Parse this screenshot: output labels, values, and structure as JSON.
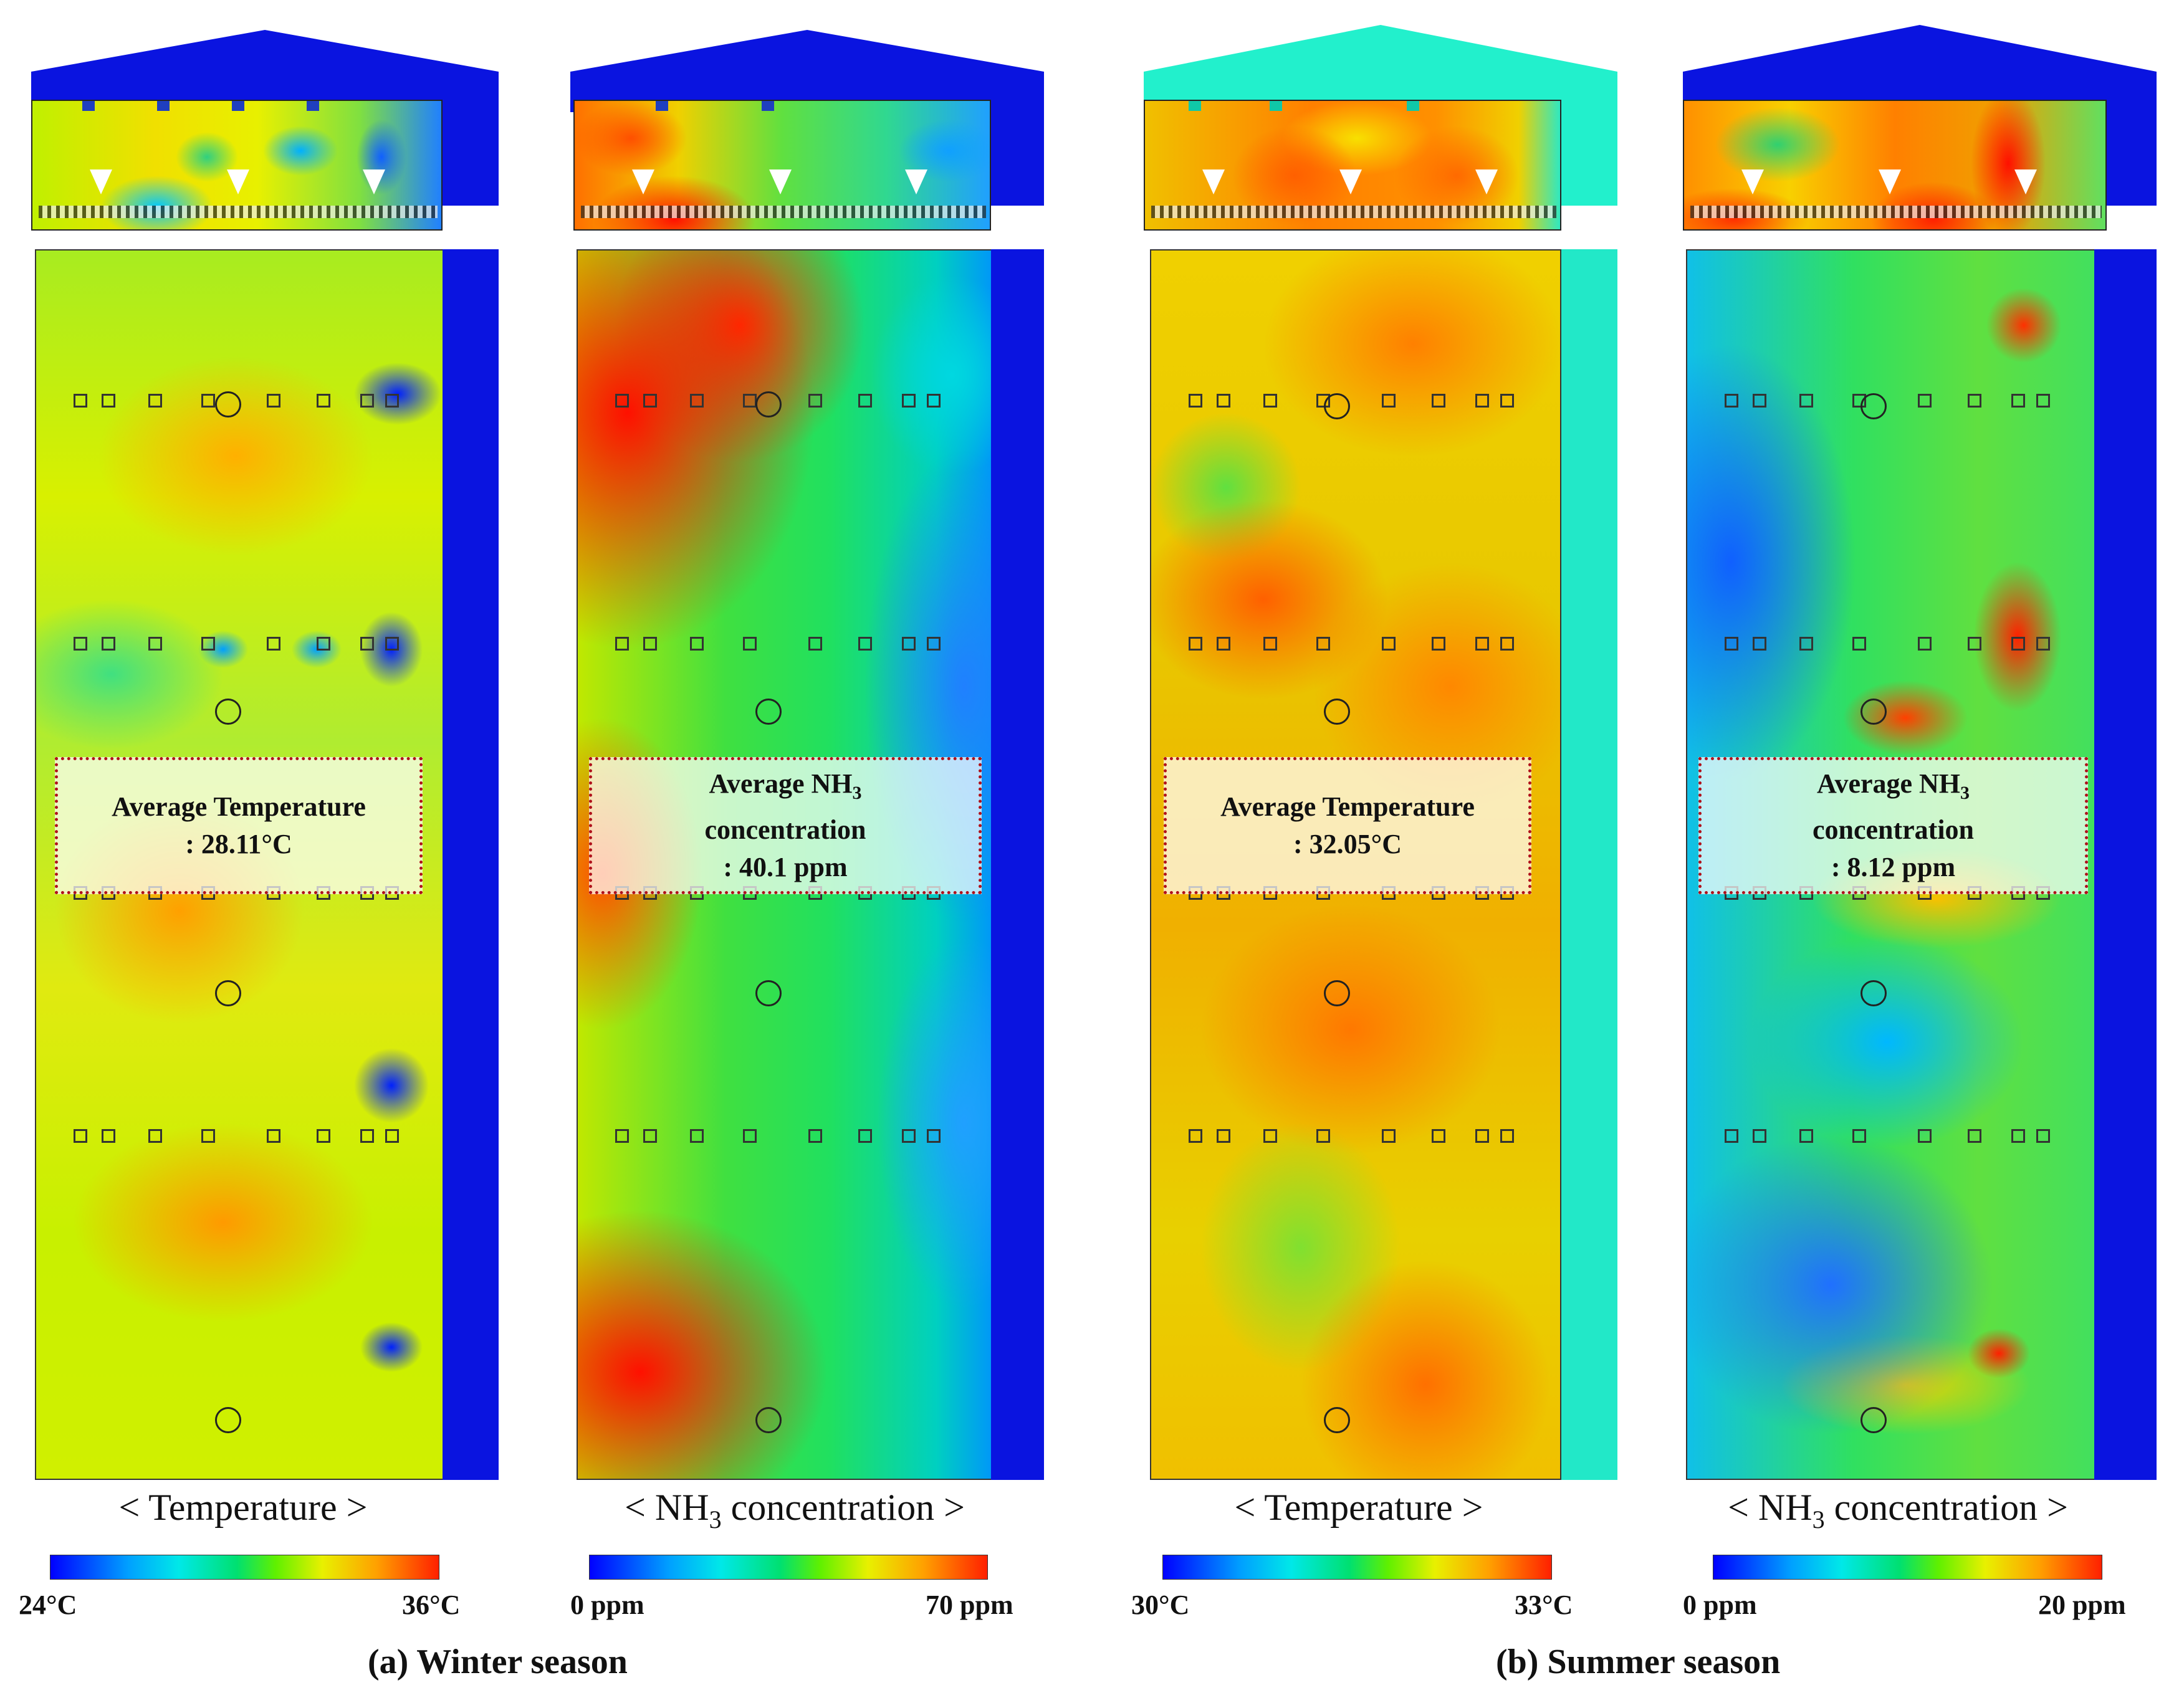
{
  "panels": [
    {
      "id": "winter-temperature",
      "avg_line1": "Average Temperature",
      "avg_line2": ": 28.11°C",
      "caption": "< Temperature >",
      "scale_min": "24°C",
      "scale_max": "36°C",
      "wall_color": "#0a14e0",
      "roof_color": "#0a14e0"
    },
    {
      "id": "winter-nh3",
      "avg_line1": "Average NH",
      "avg_line1_sub": "3",
      "avg_line2": "concentration",
      "avg_line3": ": 40.1 ppm",
      "caption_pre": "< NH",
      "caption_sub": "3",
      "caption_post": " concentration >",
      "scale_min": "0 ppm",
      "scale_max": "70 ppm",
      "wall_color": "#0a14e0",
      "roof_color": "#0a14e0"
    },
    {
      "id": "summer-temperature",
      "avg_line1": "Average Temperature",
      "avg_line2": ": 32.05°C",
      "caption": "< Temperature >",
      "scale_min": "30°C",
      "scale_max": "33°C",
      "wall_color": "#22e8c8",
      "roof_color": "#22f0cc"
    },
    {
      "id": "summer-nh3",
      "avg_line1": "Average NH",
      "avg_line1_sub": "3",
      "avg_line2": "concentration",
      "avg_line3": ": 8.12 ppm",
      "caption_pre": "< NH",
      "caption_sub": "3",
      "caption_post": " concentration >",
      "scale_min": "0 ppm",
      "scale_max": "20 ppm",
      "wall_color": "#0a14e0",
      "roof_color": "#0a14e0"
    }
  ],
  "season_labels": {
    "winter": "(a) Winter season",
    "summer": "(b) Summer season"
  },
  "colors": {
    "jet_gradient": "linear-gradient(90deg,#0000ff 0%,#00a0ff 20%,#00e8e8 33%,#00e070 48%,#60f000 58%,#e8f000 70%,#ffa000 84%,#ff2000 100%)",
    "box_border": "#b0101a"
  }
}
